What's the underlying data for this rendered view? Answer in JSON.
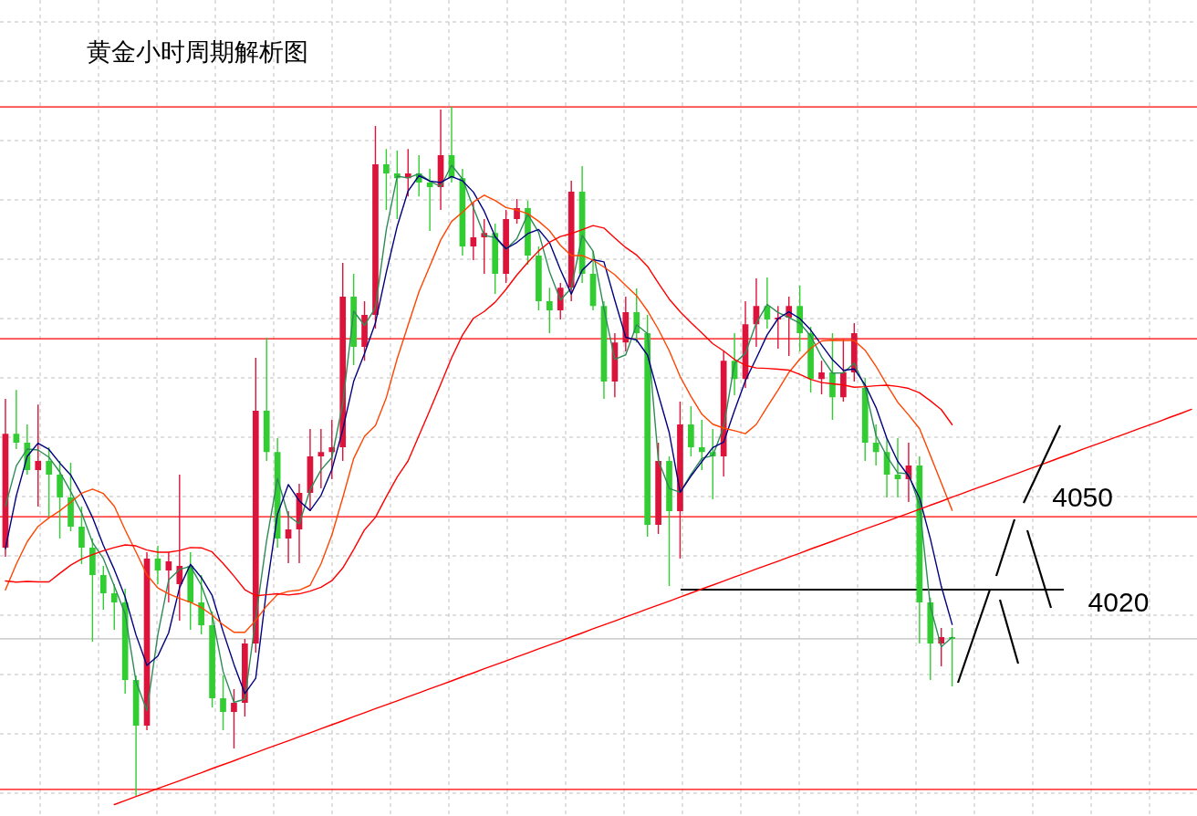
{
  "chart_data": {
    "type": "candlestick",
    "title": "黄金小时周期解析图",
    "categories": [
      null,
      null,
      null,
      null,
      null,
      null,
      null,
      null,
      null,
      null,
      null,
      null,
      null,
      null,
      null,
      null,
      null,
      null,
      null,
      null,
      null,
      null,
      null,
      null,
      null,
      null,
      null,
      null,
      null,
      null,
      null,
      null,
      null,
      null,
      null,
      null,
      null,
      null,
      null,
      null,
      null,
      null,
      null,
      null,
      null,
      null,
      null,
      null,
      null,
      null,
      null,
      null,
      null,
      null,
      null,
      null,
      null,
      null,
      null,
      null,
      null,
      null,
      null,
      null,
      null,
      null,
      null,
      null,
      null,
      null,
      null,
      null,
      null,
      null,
      null,
      null,
      null,
      null,
      null,
      null,
      null,
      null,
      null,
      null,
      null,
      null,
      null,
      null,
      null,
      null,
      null,
      null,
      null,
      null,
      null,
      null,
      null,
      null,
      null,
      null,
      null,
      null,
      null,
      null,
      null,
      null,
      null,
      null,
      null,
      null
    ],
    "ohlc": [
      [
        4037.3,
        4098.4,
        4033.5,
        4084.1
      ],
      [
        4084.1,
        4102.1,
        4077.8,
        4080.4
      ],
      [
        4080.4,
        4087.9,
        4067.3,
        4069.1
      ],
      [
        4069.1,
        4096.1,
        4054.1,
        4072.9
      ],
      [
        4072.9,
        4078.5,
        4050,
        4067.3
      ],
      [
        4067.3,
        4072.9,
        4041,
        4057.9
      ],
      [
        4057.9,
        4072.1,
        4044,
        4045.9
      ],
      [
        4045.9,
        4054.1,
        4030.5,
        4037.3
      ],
      [
        4037.3,
        4041,
        3998.6,
        4026
      ],
      [
        4026,
        4029.8,
        4011.8,
        4018.5
      ],
      [
        4018.5,
        4022.3,
        4003.5,
        4014.8
      ],
      [
        4014.8,
        4020.4,
        3977.3,
        3982.9
      ],
      [
        3982.9,
        3984.8,
        3935.3,
        3964.1
      ],
      [
        3964.1,
        4035.4,
        3962.3,
        4032.8
      ],
      [
        4032.8,
        4038,
        4022.3,
        4027.9
      ],
      [
        4027.9,
        4035.4,
        4014.8,
        4031.6
      ],
      [
        4022.3,
        4067.3,
        4007.3,
        4029.8
      ],
      [
        4029.8,
        4035.4,
        4003.5,
        4014.8
      ],
      [
        4014.8,
        4026,
        4001.6,
        4005.4
      ],
      [
        4005.4,
        4011,
        3971.6,
        3975.4
      ],
      [
        3975.4,
        3984.8,
        3962.3,
        3969.8
      ],
      [
        3969.8,
        3979.1,
        3954.8,
        3973.5
      ],
      [
        3973.5,
        3999.8,
        3967.9,
        3997.9
      ],
      [
        3997.9,
        4115.3,
        3994.1,
        4093.5
      ],
      [
        4093.5,
        4123.5,
        4072.9,
        4076.6
      ],
      [
        4076.6,
        4082.3,
        4037.3,
        4041
      ],
      [
        4041,
        4052.3,
        4030.9,
        4044.8
      ],
      [
        4044.8,
        4063.5,
        4030.9,
        4059.8
      ],
      [
        4059.8,
        4086,
        4052.3,
        4074.8
      ],
      [
        4074.8,
        4086,
        4061.6,
        4076.6
      ],
      [
        4076.6,
        4089.8,
        4065.4,
        4078.5
      ],
      [
        4078.5,
        4154.3,
        4072.9,
        4140.4
      ],
      [
        4140.4,
        4149.8,
        4112.3,
        4119.8
      ],
      [
        4119.8,
        4138.5,
        4114.1,
        4132.9
      ],
      [
        4132.9,
        4210.5,
        4127.3,
        4194.8
      ],
      [
        4194.8,
        4201.1,
        4176,
        4191
      ],
      [
        4191,
        4200.4,
        4172.3,
        4189.1
      ],
      [
        4189.1,
        4201.1,
        4181.6,
        4191
      ],
      [
        4191,
        4198.5,
        4181.6,
        4187.3
      ],
      [
        4187.3,
        4192.9,
        4167.4,
        4185.4
      ],
      [
        4185.4,
        4217.3,
        4176,
        4198.5
      ],
      [
        4198.5,
        4218.4,
        4187.3,
        4189.1
      ],
      [
        4189.1,
        4192.9,
        4157.3,
        4161
      ],
      [
        4161,
        4179,
        4155.4,
        4164.8
      ],
      [
        4164.8,
        4172.3,
        4149.8,
        4166.6
      ],
      [
        4166.6,
        4170.4,
        4141.5,
        4149.8
      ],
      [
        4149.8,
        4176,
        4146,
        4172.3
      ],
      [
        4172.3,
        4180.5,
        4170.4,
        4176.8
      ],
      [
        4176.8,
        4179.8,
        4153.5,
        4157.3
      ],
      [
        4157.3,
        4161,
        4134.8,
        4138.5
      ],
      [
        4138.5,
        4144.1,
        4125.4,
        4134.8
      ],
      [
        4134.8,
        4146,
        4131,
        4144.1
      ],
      [
        4144.1,
        4188,
        4138.5,
        4183.5
      ],
      [
        4183.5,
        4194,
        4146,
        4149.8
      ],
      [
        4149.8,
        4159.1,
        4134.8,
        4136.6
      ],
      [
        4136.6,
        4138.5,
        4098.4,
        4105.5
      ],
      [
        4105.5,
        4125.4,
        4099.1,
        4121.6
      ],
      [
        4121.6,
        4140.4,
        4117.9,
        4134
      ],
      [
        4134,
        4143.8,
        4121.6,
        4125.4
      ],
      [
        4125.4,
        4132.9,
        4041.8,
        4046.6
      ],
      [
        4046.6,
        4080.4,
        4042.9,
        4072.9
      ],
      [
        4072.9,
        4074.8,
        4021.5,
        4052.3
      ],
      [
        4052.3,
        4097.3,
        4032.8,
        4087.9
      ],
      [
        4087.9,
        4095.4,
        4074.8,
        4078.5
      ],
      [
        4078.5,
        4089.8,
        4069.1,
        4076.6
      ],
      [
        4076.6,
        4086,
        4057.1,
        4074.8
      ],
      [
        4074.8,
        4117.9,
        4066.5,
        4114.1
      ],
      [
        4114.1,
        4125.4,
        4099.9,
        4106.6
      ],
      [
        4106.6,
        4138.5,
        4102.9,
        4129.1
      ],
      [
        4129.1,
        4147.9,
        4119.8,
        4136.6
      ],
      [
        4136.6,
        4148.3,
        4127.3,
        4131
      ],
      [
        4131,
        4136.6,
        4119,
        4131.8
      ],
      [
        4131.8,
        4140.4,
        4116,
        4136.6
      ],
      [
        4136.6,
        4144.9,
        4117.9,
        4125.4
      ],
      [
        4125.4,
        4128,
        4101,
        4106.6
      ],
      [
        4106.6,
        4114.1,
        4100.3,
        4109.3
      ],
      [
        4109.3,
        4125.4,
        4089.8,
        4099.1
      ],
      [
        4099.1,
        4122.8,
        4097.3,
        4109.3
      ],
      [
        4109.3,
        4129.5,
        4105.5,
        4125.4
      ],
      [
        4102.9,
        4107,
        4072.9,
        4080.4
      ],
      [
        4080.4,
        4087.9,
        4071,
        4076.6
      ],
      [
        4076.6,
        4082.3,
        4057.9,
        4067.3
      ],
      [
        4067.3,
        4082.3,
        4057.9,
        4065.4
      ],
      [
        4065.4,
        4080.4,
        4056,
        4071
      ],
      [
        4071,
        4074.8,
        3997.9,
        4014.8
      ],
      [
        4014.8,
        4016.6,
        3982.9,
        3997.9
      ],
      [
        3997.9,
        4004.3,
        3988.5,
        4000.5
      ],
      [
        4000.5,
        4004.3,
        3980.3,
        3999.8
      ],
      null,
      null,
      null,
      null,
      null,
      null,
      null,
      null,
      null,
      null,
      null,
      null,
      null,
      null,
      null,
      null,
      null,
      null,
      null,
      null,
      null,
      null
    ],
    "colors": [
      "#dc143c",
      "#32cd32",
      "#32cd32",
      "#dc143c",
      "#32cd32",
      "#32cd32",
      "#32cd32",
      "#32cd32",
      "#32cd32",
      "#32cd32",
      "#32cd32",
      "#32cd32",
      "#32cd32",
      "#dc143c",
      "#32cd32",
      "#dc143c",
      "#dc143c",
      "#32cd32",
      "#32cd32",
      "#32cd32",
      "#32cd32",
      "#dc143c",
      "#dc143c",
      "#dc143c",
      "#32cd32",
      "#32cd32",
      "#dc143c",
      "#dc143c",
      "#dc143c",
      "#dc143c",
      "#dc143c",
      "#dc143c",
      "#32cd32",
      "#dc143c",
      "#dc143c",
      "#32cd32",
      "#32cd32",
      "#dc143c",
      "#32cd32",
      "#32cd32",
      "#dc143c",
      "#32cd32",
      "#32cd32",
      "#dc143c",
      "#dc143c",
      "#32cd32",
      "#dc143c",
      "#dc143c",
      "#32cd32",
      "#32cd32",
      "#32cd32",
      "#dc143c",
      "#dc143c",
      "#32cd32",
      "#32cd32",
      "#32cd32",
      "#dc143c",
      "#dc143c",
      "#32cd32",
      "#32cd32",
      "#dc143c",
      "#32cd32",
      "#dc143c",
      "#32cd32",
      "#32cd32",
      "#32cd32",
      "#dc143c",
      "#32cd32",
      "#dc143c",
      "#dc143c",
      "#32cd32",
      "#dc143c",
      "#dc143c",
      "#32cd32",
      "#32cd32",
      "#dc143c",
      "#32cd32",
      "#dc143c",
      "#dc143c",
      "#32cd32",
      "#32cd32",
      "#32cd32",
      "#32cd32",
      "#dc143c",
      "#32cd32",
      "#32cd32",
      "#dc143c",
      "#32cd32",
      null,
      null,
      null,
      null,
      null,
      null,
      null,
      null,
      null,
      null,
      null,
      null,
      null,
      null,
      null,
      null,
      null,
      null,
      null,
      null,
      null,
      null
    ],
    "series": [
      {
        "type": "line",
        "color": "#2e8b57",
        "values": [
          4054.3,
          4070.9,
          4077.8,
          4077.4,
          4074.4,
          4068.3,
          4060.3,
          4051.6,
          4039.4,
          4032.8,
          4021.5,
          4010.1,
          3982.2,
          3970.3,
          4001.4,
          4024.0,
          4028.3,
          4029.6,
          4021.8,
          4009.6,
          3986.4,
          3973.7,
          3975.0,
          4008.3,
          4040.1,
          4065.7,
          4050.3,
          4047.1,
          4061.1,
          4069.2,
          4074.3,
          4096.5,
          4134.4,
          4128.6,
          4135.9,
          4167.9,
          4189.9,
          4189.2,
          4190.9,
          4187.9,
          4185.6,
          4194.4,
          4188.8,
          4177.0,
          4165.6,
          4164.7,
          4159.9,
          4164.2,
          4174.3,
          4166.8,
          4150.6,
          4139.0,
          4143.9,
          4165.6,
          4159.1,
          4135.4,
          4114.7,
          4116.5,
          4128.9,
          4125.2,
          4073.2,
          4061.6,
          4060.0,
          4067.4,
          4074.0,
          4075.1,
          4086.8,
          4113.0,
          4117.1,
          4129.6,
          4137.2,
          4133.9,
          4131.8,
          4129.5,
          4124.3,
          4115.6,
          4109.0,
          4109.1,
          4113.1,
          4103.0,
          4083.3,
          4074.8,
          4068.0,
          4067.6,
          4054.7,
          4013.0,
          3996.5,
          4000.5,
          null,
          null,
          null,
          null,
          null,
          null,
          null,
          null,
          null,
          null,
          null,
          null,
          null,
          null,
          null,
          null,
          null,
          null,
          null,
          null,
          null,
          null
        ]
      },
      {
        "type": "line",
        "color": "#000080",
        "values": [
          4036.9,
          4058.6,
          4074.8,
          4080.2,
          4077.6,
          4072.0,
          4067.1,
          4059.1,
          4049.7,
          4038.2,
          4028.3,
          4017.0,
          4001.4,
          3988.9,
          3992.7,
          4002.3,
          4020.8,
          4030.4,
          4025.0,
          4017.6,
          4002.8,
          3989.3,
          3977.3,
          3983.6,
          4020.2,
          4051.0,
          4063.2,
          4056.5,
          4052.5,
          4058.7,
          4069.4,
          4085.8,
          4105.6,
          4117.1,
          4129.6,
          4150.4,
          4169.3,
          4183.8,
          4190.1,
          4187.9,
          4187.3,
          4189.8,
          4188.0,
          4183.4,
          4175.5,
          4165.1,
          4160.1,
          4162.7,
          4166.3,
          4168.0,
          4162.6,
          4151.5,
          4141.5,
          4151.3,
          4155.6,
          4154.7,
          4138.9,
          4123.7,
          4122.6,
          4116.4,
          4100.2,
          4084.5,
          4060.0,
          4066.7,
          4072.6,
          4078.4,
          4080.6,
          4093.6,
          4105.9,
          4115.1,
          4124.7,
          4131.4,
          4134.2,
          4131.4,
          4126.7,
          4120.6,
          4114.5,
          4110.1,
          4110.7,
          4104.2,
          4094.9,
          4082.2,
          4072.7,
          4066.7,
          4057.7,
          4040.9,
          4021.4,
          4005.7,
          null,
          null,
          null,
          null,
          null,
          null,
          null,
          null,
          null,
          null,
          null,
          null,
          null,
          null,
          null,
          null,
          null,
          null,
          null,
          null,
          null,
          null
        ]
      },
      {
        "type": "line",
        "color": "#ff4500",
        "values": [
          4019.9,
          4030.5,
          4039.7,
          4046.0,
          4049.5,
          4052.4,
          4055.9,
          4059.6,
          4061.3,
          4059.5,
          4054.3,
          4044.6,
          4035.5,
          4026.1,
          4020.7,
          4018.3,
          4016.4,
          4014.8,
          4012.7,
          4009.5,
          4005.6,
          4002.5,
          4002.5,
          4007.4,
          4013.3,
          4018.0,
          4019.3,
          4019.8,
          4021.8,
          4030.6,
          4042.5,
          4057.8,
          4073.9,
          4083.0,
          4087.4,
          4098.9,
          4114.9,
          4128.7,
          4142.4,
          4153.0,
          4163.7,
          4171.3,
          4175.1,
          4179.3,
          4182.1,
          4179.9,
          4177.0,
          4176.0,
          4174.5,
          4171.4,
          4167.5,
          4161.5,
          4157.3,
          4157.3,
          4155.4,
          4152.6,
          4149.4,
          4145.0,
          4140.8,
          4134.6,
          4127.0,
          4118.2,
          4107.6,
          4099.4,
          4092.1,
          4088.0,
          4086.4,
          4085.3,
          4084.1,
          4087.9,
          4095.1,
          4102.0,
          4109.3,
          4114.7,
          4119.2,
          4122.2,
          4122.5,
          4122.4,
          4122.4,
          4118.4,
          4111.8,
          4104.2,
          4097.0,
          4091.8,
          4086.2,
          4075.1,
          4063.9,
          4052.6,
          null,
          null,
          null,
          null,
          null,
          null,
          null,
          null,
          null,
          null,
          null,
          null,
          null,
          null,
          null,
          null,
          null,
          null,
          null,
          null,
          null,
          null
        ]
      },
      {
        "type": "line",
        "color": "#ff0000",
        "values": [
          4023.6,
          4023.1,
          4023.4,
          4023.2,
          4023.2,
          4026.7,
          4030.1,
          4032.6,
          4034.4,
          4036.0,
          4037.3,
          4038.4,
          4038.0,
          4036.3,
          4035.4,
          4035.4,
          4036.1,
          4037.3,
          4037.2,
          4035.5,
          4030.8,
          4025.6,
          4020.0,
          4017.5,
          4017.9,
          4018.3,
          4017.8,
          4018.3,
          4019.4,
          4021.0,
          4023.7,
          4028.9,
          4036.5,
          4044.6,
          4049.7,
          4058.2,
          4066.3,
          4072.9,
          4083.3,
          4093.7,
          4104.4,
          4115.3,
          4124.6,
          4131.5,
          4134.3,
          4138.1,
          4143.4,
          4149.3,
          4154.5,
          4159.2,
          4162.8,
          4165.1,
          4166.3,
          4167.9,
          4169.6,
          4168.6,
          4164.5,
          4160.6,
          4157.5,
          4152.9,
          4146.0,
          4139.4,
          4134.2,
          4129.7,
          4125.5,
          4121.1,
          4118.1,
          4114.6,
          4112.2,
          4111.1,
          4110.9,
          4110.6,
          4110.2,
          4108.5,
          4106.4,
          4105.1,
          4104.6,
          4104.1,
          4103.2,
          4103.4,
          4103.8,
          4104.0,
          4103.5,
          4102.7,
          4100.9,
          4097.6,
          4094.0,
          4087.8,
          null,
          null,
          null,
          null,
          null,
          null,
          null,
          null,
          null,
          null,
          null,
          null,
          null,
          null,
          null,
          null,
          null,
          null,
          null,
          null,
          null,
          null
        ]
      },
      {
        "type": "line",
        "color": "#ff0000",
        "values": [
          null,
          null,
          null,
          null,
          null,
          null,
          null,
          null,
          null,
          null,
          3931.7,
          3933.3,
          3935.0,
          3936.6,
          3938.3,
          3939.9,
          3941.5,
          3943.2,
          3944.8,
          3946.5,
          3948.1,
          3949.7,
          3951.4,
          3953.0,
          3954.7,
          3956.3,
          3957.9,
          3959.6,
          3961.2,
          3962.9,
          3964.5,
          3966.1,
          3967.8,
          3969.4,
          3971.1,
          3972.7,
          3974.3,
          3976.0,
          3977.6,
          3979.3,
          3980.9,
          3982.5,
          3984.2,
          3985.8,
          3987.5,
          3989.1,
          3990.7,
          3992.4,
          3994.0,
          3995.7,
          3997.3,
          3998.9,
          4000.6,
          4002.2,
          4003.9,
          4005.5,
          4007.1,
          4008.8,
          4010.4,
          4012.1,
          4013.7,
          4015.3,
          4017.0,
          4018.6,
          4020.3,
          4021.9,
          4023.5,
          4025.2,
          4026.8,
          4028.5,
          4030.1,
          4031.7,
          4033.4,
          4035.0,
          4036.7,
          4038.3,
          4039.9,
          4041.6,
          4043.2,
          4044.9,
          4046.5,
          4048.1,
          4049.8,
          4051.4,
          4053.1,
          4054.7,
          4056.3,
          4058.0,
          4059.6,
          4061.3,
          4062.9,
          4064.5,
          4066.2,
          4067.8,
          4069.5,
          4071.1,
          4072.7,
          4074.4,
          4076.0,
          4077.7,
          4079.3,
          4080.9,
          4082.6,
          4084.2,
          4085.9,
          4087.5,
          4089.1,
          4090.8,
          4092.4,
          4094.1
        ]
      }
    ],
    "ylim": [
      3927,
      4262.3
    ],
    "grid": true,
    "ref_lines": [
      {
        "axis": "y",
        "value": 4218.4,
        "color": "#ff0000"
      },
      {
        "axis": "y",
        "value": 4123.1,
        "color": "#ff0000"
      },
      {
        "axis": "y",
        "value": 4050,
        "label": "4050",
        "color": "#ff0000"
      },
      {
        "axis": "y",
        "value": 4020,
        "label": "4020",
        "color": "#000000"
      },
      {
        "axis": "y",
        "value": 3999.8,
        "color": "#c0c0c0"
      },
      {
        "axis": "y",
        "value": 3937.9,
        "color": "#ff0000"
      }
    ]
  }
}
